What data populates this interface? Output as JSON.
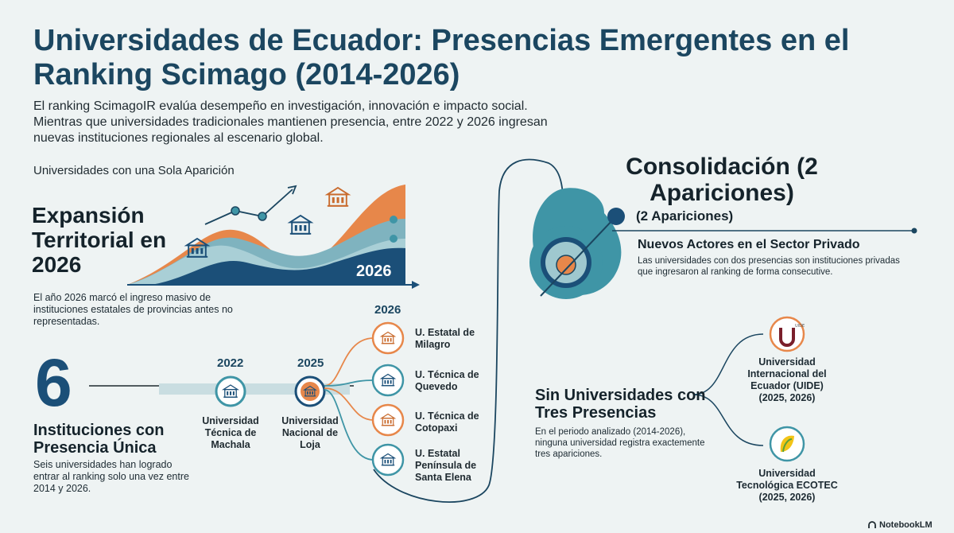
{
  "title": "Universidades de Ecuador: Presencias Emergentes en el Ranking Scimago (2014-2026)",
  "intro": {
    "line1": "El ranking ScimagoIR evalúa desempeño en investigación, innovación e impacto social.",
    "line2": "Mientras que universidades tradicionales mantienen presencia, entre 2022 y 2026 ingresan",
    "line3": "nuevas instituciones regionales al escenario global."
  },
  "left_section_label": "Universidades con una Sola Aparición",
  "expansion": {
    "heading": "Expansión Territorial en 2026",
    "chart_year": "2026",
    "body": "El año 2026 marcó el ingreso masivo de instituciones estatales de provincias antes no representadas."
  },
  "single": {
    "count": "6",
    "heading": "Instituciones con Presencia Única",
    "body": "Seis universidades han logrado entrar al ranking solo una vez entre 2014 y 2026."
  },
  "timeline": {
    "year_2022": "2022",
    "year_2025": "2025",
    "year_2026": "2026",
    "uni_2022": "Universidad Técnica de Machala",
    "uni_2025": "Universidad Nacional de Loja",
    "unis_2026": [
      "U. Estatal de Milagro",
      "U. Técnica de Quevedo",
      "U. Técnica de Cotopaxi",
      "U. Estatal Península de Santa Elena"
    ]
  },
  "consolidation": {
    "heading": "Consolidación (2 Apariciones)",
    "subheading": "(2 Apariciones)",
    "private_heading": "Nuevos Actores en el Sector Privado",
    "private_body": "Las universidades con dos presencias son instituciones privadas que ingresaron al ranking de forma consecutive."
  },
  "three": {
    "heading": "Sin Universidades con Tres Presencias",
    "body": "En el periodo analizado (2014-2026), ninguna universidad registra exactemente tres apariciones.",
    "uide": "Universidad Internacional del Ecuador (UIDE) (2025, 2026)",
    "ecotec": "Universidad Tecnológica ECOTEC (2025, 2026)"
  },
  "brand": "NotebookLM",
  "colors": {
    "navy": "#1b4f78",
    "teal": "#3f95a6",
    "orange": "#e2864a",
    "background": "#eef3f3"
  },
  "icons": [
    "university-building-icon",
    "trend-arrow-icon",
    "target-icon",
    "uide-logo",
    "ecotec-logo"
  ]
}
